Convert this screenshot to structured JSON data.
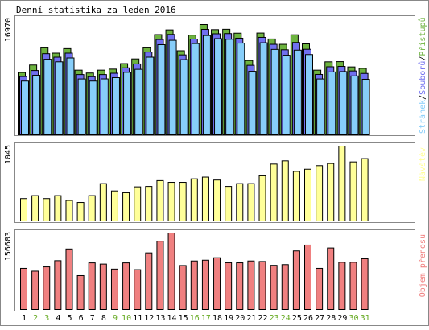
{
  "title": "Denní statistika za leden 2016",
  "colors": {
    "hits": "#6db33f",
    "files": "#7070f0",
    "pages": "#87cefa",
    "visits": "#ffff99",
    "volume": "#f08080",
    "border": "#000000",
    "weekend_label": "#66aa22",
    "frame": "#888888"
  },
  "chart_data": [
    {
      "type": "bar",
      "title": "Denní statistika za leden 2016",
      "ylabel": "16970",
      "ylim": [
        0,
        16970
      ],
      "legend": [
        "Stránek",
        "Souborů",
        "Přístupů"
      ],
      "legend_colors": [
        "#87cefa",
        "#7070f0",
        "#6db33f"
      ],
      "legend_position": "right",
      "categories": [
        "1",
        "2",
        "3",
        "4",
        "5",
        "6",
        "7",
        "8",
        "9",
        "10",
        "11",
        "12",
        "13",
        "14",
        "15",
        "16",
        "17",
        "18",
        "19",
        "20",
        "21",
        "22",
        "23",
        "24",
        "25",
        "26",
        "27",
        "28",
        "29",
        "30",
        "31"
      ],
      "series": [
        {
          "name": "Přístupů",
          "values": [
            9250,
            10460,
            13230,
            12370,
            13100,
            9630,
            9170,
            9630,
            9800,
            10680,
            11440,
            13230,
            15350,
            16110,
            12760,
            15270,
            16970,
            16150,
            16210,
            15580,
            11180,
            15600,
            14650,
            13790,
            15320,
            13860,
            9630,
            10970,
            11000,
            10150,
            9920
          ]
        },
        {
          "name": "Souborů",
          "values": [
            8990,
            9960,
            12670,
            12110,
            12760,
            9310,
            8970,
            9310,
            9520,
            10390,
            11020,
            12940,
            14950,
            15760,
            12480,
            15030,
            16580,
            15870,
            15900,
            15160,
            10800,
            15290,
            14180,
            13300,
            14480,
            13380,
            9330,
            10560,
            10620,
            9890,
            9490
          ]
        },
        {
          "name": "Stránek",
          "values": [
            8650,
            9590,
            12160,
            11750,
            12370,
            8990,
            8650,
            9000,
            9200,
            10060,
            10540,
            12500,
            14510,
            15210,
            12100,
            14690,
            15980,
            15480,
            15380,
            14760,
            10220,
            14820,
            13750,
            12810,
            13630,
            12920,
            8990,
            10120,
            10180,
            9480,
            8940
          ]
        }
      ]
    },
    {
      "type": "bar",
      "ylabel": "1045",
      "ylim": [
        0,
        1045
      ],
      "legend": [
        "Návštěv"
      ],
      "legend_colors": [
        "#ffff99"
      ],
      "legend_position": "right",
      "categories": [
        "1",
        "2",
        "3",
        "4",
        "5",
        "6",
        "7",
        "8",
        "9",
        "10",
        "11",
        "12",
        "13",
        "14",
        "15",
        "16",
        "17",
        "18",
        "19",
        "20",
        "21",
        "22",
        "23",
        "24",
        "25",
        "26",
        "27",
        "28",
        "29",
        "30",
        "31"
      ],
      "series": [
        {
          "name": "Návštěv",
          "values": [
            312,
            353,
            312,
            353,
            286,
            258,
            353,
            521,
            419,
            394,
            476,
            482,
            563,
            539,
            539,
            588,
            612,
            571,
            482,
            521,
            521,
            630,
            794,
            839,
            692,
            722,
            772,
            802,
            1045,
            824,
            870
          ]
        }
      ]
    },
    {
      "type": "bar",
      "ylabel": "156683",
      "ylim": [
        0,
        156683
      ],
      "legend": [
        "Objem přenosu"
      ],
      "legend_colors": [
        "#f08080"
      ],
      "legend_position": "right",
      "categories": [
        "1",
        "2",
        "3",
        "4",
        "5",
        "6",
        "7",
        "8",
        "9",
        "10",
        "11",
        "12",
        "13",
        "14",
        "15",
        "16",
        "17",
        "18",
        "19",
        "20",
        "21",
        "22",
        "23",
        "24",
        "25",
        "26",
        "27",
        "28",
        "29",
        "30",
        "31"
      ],
      "series": [
        {
          "name": "Objem přenosu",
          "values": [
            84200,
            78400,
            87300,
            100000,
            124000,
            69300,
            95500,
            93000,
            82700,
            95500,
            81500,
            116000,
            140000,
            156683,
            90000,
            99400,
            101000,
            106000,
            95800,
            95600,
            99400,
            98300,
            90400,
            91900,
            120000,
            132000,
            84200,
            126000,
            96700,
            96700,
            104000
          ]
        }
      ]
    }
  ],
  "x_axis": {
    "labels": [
      "1",
      "2",
      "3",
      "4",
      "5",
      "6",
      "7",
      "8",
      "9",
      "10",
      "11",
      "12",
      "13",
      "14",
      "15",
      "16",
      "17",
      "18",
      "19",
      "20",
      "21",
      "22",
      "23",
      "24",
      "25",
      "26",
      "27",
      "28",
      "29",
      "30",
      "31"
    ],
    "weekend_days": [
      2,
      3,
      9,
      10,
      16,
      17,
      23,
      24,
      30,
      31
    ]
  }
}
